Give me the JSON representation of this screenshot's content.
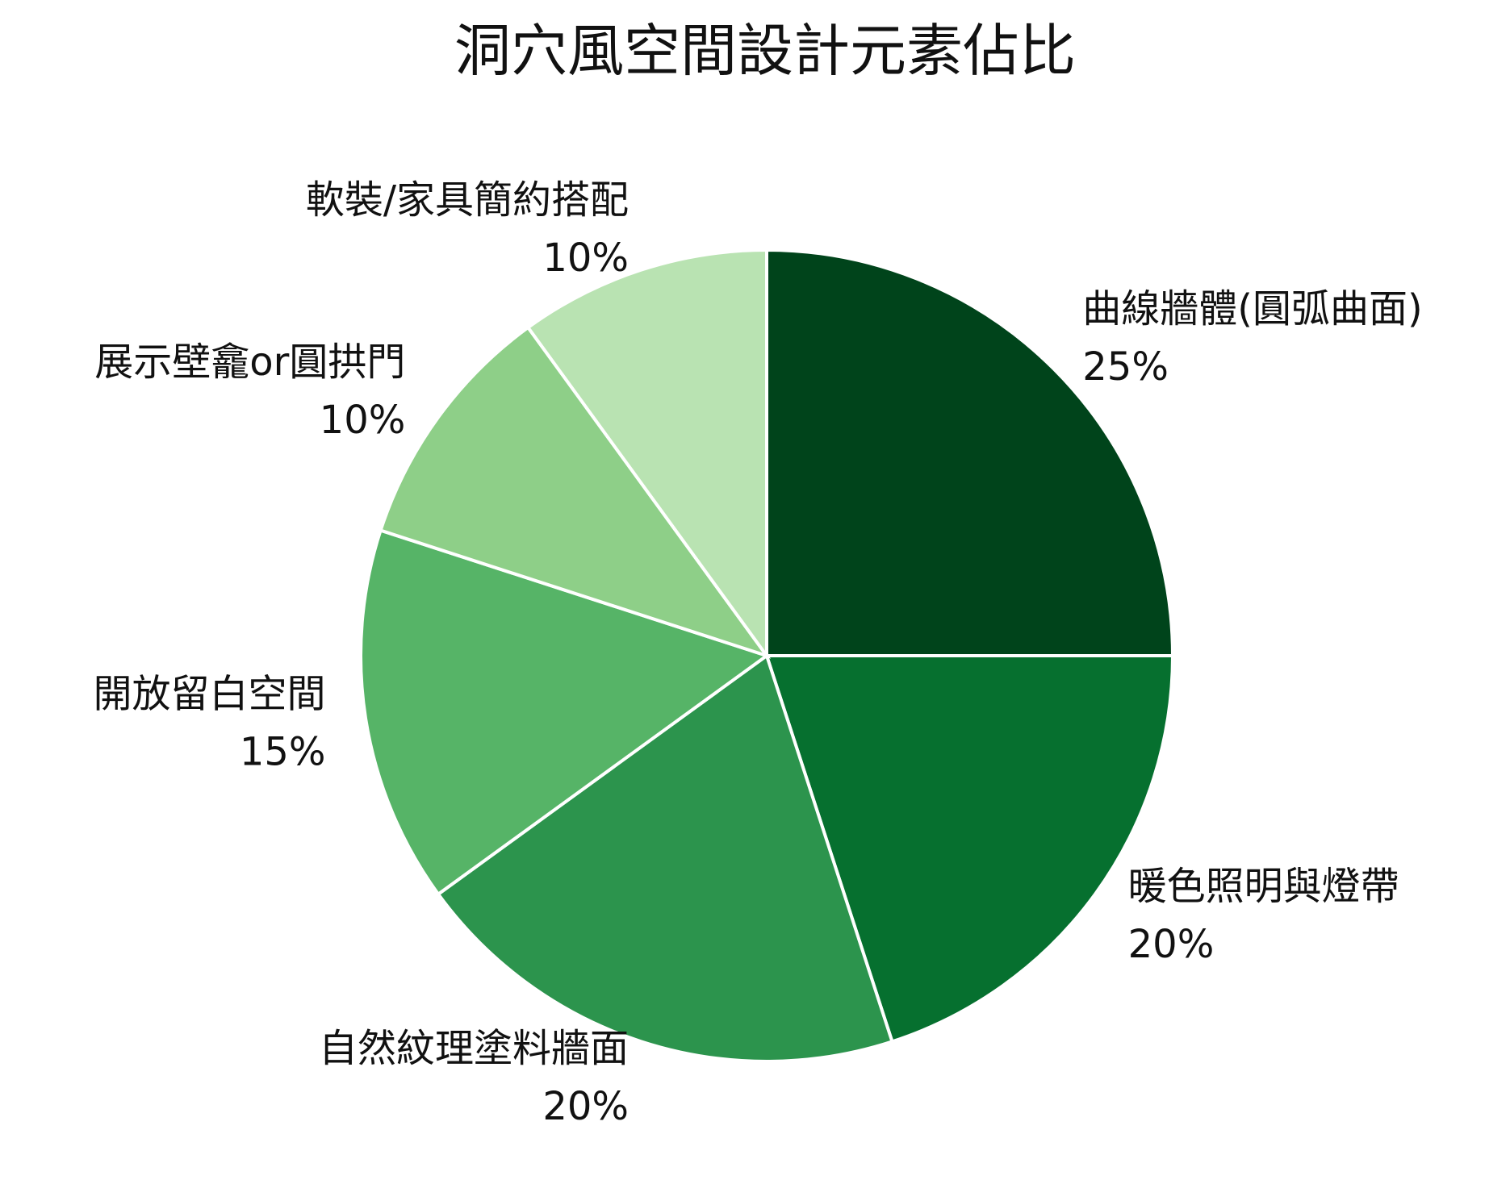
{
  "chart_data": {
    "type": "pie",
    "title": "洞穴風空間設計元素佔比",
    "categories": [
      "曲線牆體(圓弧曲面)",
      "暖色照明與燈帶",
      "自然紋理塗料牆面",
      "開放留白空間",
      "展示壁龕or圓拱門",
      "軟裝/家具簡約搭配"
    ],
    "values": [
      25,
      20,
      20,
      15,
      10,
      10
    ],
    "value_labels": [
      "25%",
      "20%",
      "20%",
      "15%",
      "10%",
      "10%"
    ],
    "colors": [
      "#00441b",
      "#06702f",
      "#2c944d",
      "#56b467",
      "#8ecf88",
      "#b9e3b2"
    ]
  }
}
